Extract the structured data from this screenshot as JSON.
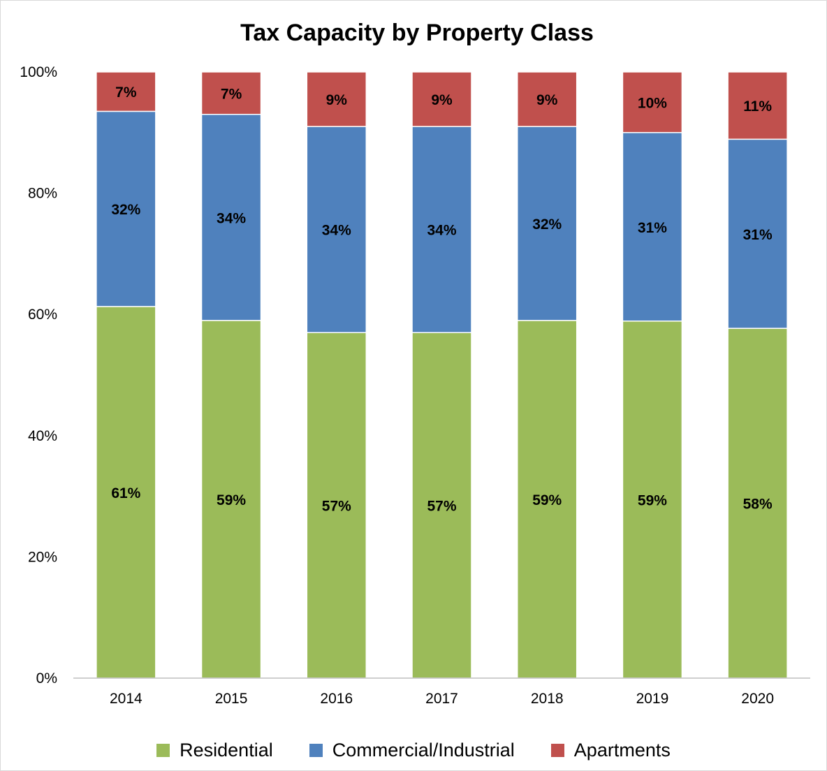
{
  "chart_data": {
    "type": "bar",
    "stacked": true,
    "title": "Tax Capacity by Property Class",
    "categories": [
      "2014",
      "2015",
      "2016",
      "2017",
      "2018",
      "2019",
      "2020"
    ],
    "series": [
      {
        "name": "Residential",
        "color": "#9BBB59",
        "values": [
          61.3,
          59,
          57,
          57,
          59,
          58.9,
          57.7
        ],
        "labels": [
          "61%",
          "59%",
          "57%",
          "57%",
          "59%",
          "59%",
          "58%"
        ]
      },
      {
        "name": "Commercial/Industrial",
        "color": "#4F81BD",
        "values": [
          32.2,
          34,
          34,
          34,
          32,
          31.1,
          31.2
        ],
        "labels": [
          "32%",
          "34%",
          "34%",
          "34%",
          "32%",
          "31%",
          "31%"
        ]
      },
      {
        "name": "Apartments",
        "color": "#C0504D",
        "values": [
          6.5,
          7,
          9,
          9,
          9,
          10,
          11.1
        ],
        "labels": [
          "7%",
          "7%",
          "9%",
          "9%",
          "9%",
          "10%",
          "11%"
        ]
      }
    ],
    "yticks": [
      "0%",
      "20%",
      "40%",
      "60%",
      "80%",
      "100%"
    ],
    "ylim": [
      0,
      100
    ],
    "grid": false,
    "legend_position": "bottom"
  }
}
